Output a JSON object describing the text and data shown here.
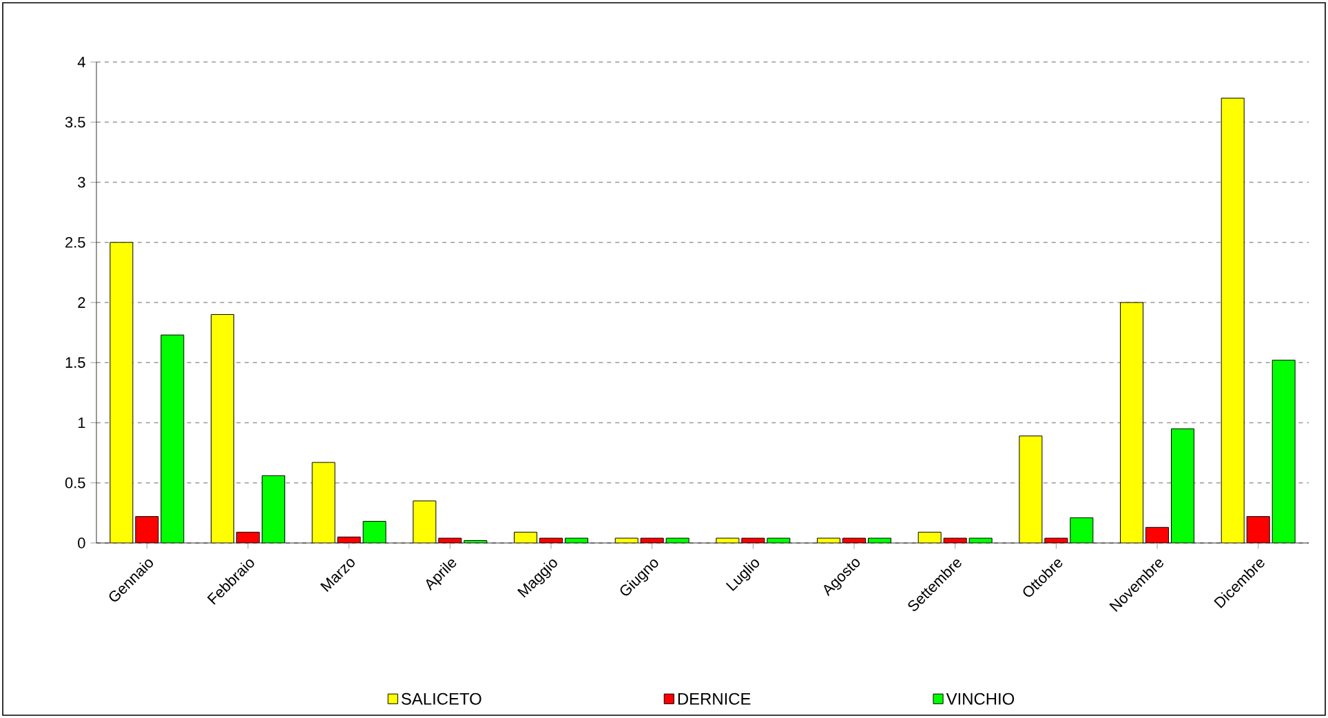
{
  "chart_data": {
    "type": "bar",
    "categories": [
      "Gennaio",
      "Febbraio",
      "Marzo",
      "Aprile",
      "Maggio",
      "Giugno",
      "Luglio",
      "Agosto",
      "Settembre",
      "Ottobre",
      "Novembre",
      "Dicembre"
    ],
    "series": [
      {
        "name": "SALICETO",
        "color": "#ffff00",
        "values": [
          2.5,
          1.9,
          0.67,
          0.35,
          0.09,
          0.04,
          0.04,
          0.04,
          0.09,
          0.89,
          2.0,
          3.7
        ]
      },
      {
        "name": "DERNICE",
        "color": "#ff0000",
        "values": [
          0.22,
          0.09,
          0.05,
          0.04,
          0.04,
          0.04,
          0.04,
          0.04,
          0.04,
          0.04,
          0.13,
          0.22
        ]
      },
      {
        "name": "VINCHIO",
        "color": "#00ff00",
        "values": [
          1.73,
          0.56,
          0.18,
          0.02,
          0.04,
          0.04,
          0.04,
          0.04,
          0.04,
          0.21,
          0.95,
          1.52
        ]
      }
    ],
    "ylim": [
      0,
      4
    ],
    "yticks": [
      0,
      0.5,
      1,
      1.5,
      2,
      2.5,
      3,
      3.5,
      4
    ],
    "grid": "y",
    "legend": "bottom"
  }
}
